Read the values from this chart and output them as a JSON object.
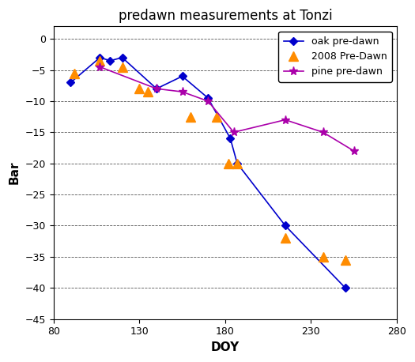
{
  "title": "predawn measurements at Tonzi",
  "xlabel": "DOY",
  "ylabel": "Bar",
  "xlim": [
    80,
    280
  ],
  "ylim": [
    -45,
    2
  ],
  "xticks": [
    80,
    130,
    180,
    230,
    280
  ],
  "yticks": [
    0,
    -5,
    -10,
    -15,
    -20,
    -25,
    -30,
    -35,
    -40,
    -45
  ],
  "oak": {
    "x": [
      90,
      107,
      113,
      120,
      140,
      155,
      170,
      183,
      187,
      215,
      250
    ],
    "y": [
      -7,
      -3,
      -3.5,
      -3,
      -8,
      -6,
      -9.5,
      -16,
      -20,
      -30,
      -40
    ],
    "color": "#0000cc",
    "marker": "D",
    "label": "oak pre-dawn",
    "markersize": 5,
    "markerfacecolor": "#0000cc"
  },
  "dawn2008": {
    "x": [
      92,
      107,
      120,
      130,
      135,
      160,
      175,
      182,
      187,
      215,
      237,
      250
    ],
    "y": [
      -5.5,
      -3.5,
      -4.5,
      -8,
      -8.5,
      -12.5,
      -12.5,
      -20,
      -20,
      -32,
      -35,
      -35.5
    ],
    "color": "#ff8c00",
    "marker": "^",
    "label": "2008 Pre-Dawn",
    "markersize": 8,
    "markerfacecolor": "#ff8c00"
  },
  "pine": {
    "x": [
      107,
      140,
      155,
      170,
      185,
      215,
      237,
      255
    ],
    "y": [
      -4.5,
      -8,
      -8.5,
      -10,
      -15,
      -13,
      -15,
      -18
    ],
    "color": "#aa00aa",
    "marker": "*",
    "label": "pine pre-dawn",
    "markersize": 8,
    "markerfacecolor": "#aa00aa"
  },
  "background_color": "#ffffff",
  "plot_bg_color": "#ffffff",
  "grid_color": "#555555",
  "grid_linestyle": "--",
  "title_fontsize": 12,
  "axis_label_fontsize": 11,
  "tick_fontsize": 9,
  "legend_fontsize": 9
}
